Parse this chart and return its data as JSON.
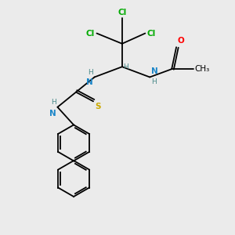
{
  "bg_color": "#ebebeb",
  "atom_colors": {
    "C": "#000000",
    "N": "#1c86c8",
    "O": "#ff0000",
    "S": "#ccaa00",
    "Cl": "#00aa00",
    "H": "#4a8a8a"
  },
  "figsize": [
    3.0,
    3.0
  ],
  "dpi": 100
}
